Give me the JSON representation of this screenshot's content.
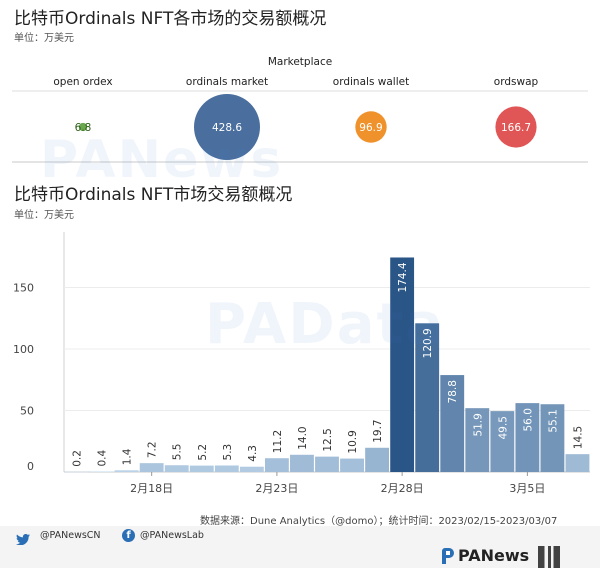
{
  "chart_data": [
    {
      "type": "scatter",
      "title": "比特币Ordinals NFT各市场的交易额概况",
      "subtitle": "单位：万美元",
      "header": "Marketplace",
      "categories": [
        "open ordex",
        "ordinals market",
        "ordinals wallet",
        "ordswap"
      ],
      "values": [
        6.8,
        428.6,
        96.9,
        166.7
      ],
      "labels": [
        "6.8",
        "428.6",
        "96.9",
        "166.7"
      ],
      "colors": [
        "#6aa84f",
        "#4a6f9e",
        "#f0922c",
        "#e05555"
      ]
    },
    {
      "type": "bar",
      "title": "比特币Ordinals NFT市场交易额概况",
      "subtitle": "单位：万美元",
      "categories": [
        "2023-02-15",
        "2023-02-16",
        "2023-02-17",
        "2023-02-18",
        "2023-02-19",
        "2023-02-20",
        "2023-02-21",
        "2023-02-22",
        "2023-02-23",
        "2023-02-24",
        "2023-02-25",
        "2023-02-26",
        "2023-02-27",
        "2023-02-28",
        "2023-03-01",
        "2023-03-02",
        "2023-03-03",
        "2023-03-04",
        "2023-03-05",
        "2023-03-06",
        "2023-03-07"
      ],
      "values": [
        0.2,
        0.4,
        1.4,
        7.2,
        5.5,
        5.2,
        5.3,
        4.3,
        11.2,
        14.0,
        12.5,
        10.9,
        19.7,
        174.4,
        120.9,
        78.8,
        51.9,
        49.5,
        56.0,
        55.1,
        14.5
      ],
      "labels": [
        "0.2",
        "0.4",
        "1.4",
        "7.2",
        "5.5",
        "5.2",
        "5.3",
        "4.3",
        "11.2",
        "14.0",
        "12.5",
        "10.9",
        "19.7",
        "174.4",
        "120.9",
        "78.8",
        "51.9",
        "49.5",
        "56.0",
        "55.1",
        "14.5"
      ],
      "x_ticks": [
        "2月18日",
        "2月23日",
        "2月28日",
        "3月5日"
      ],
      "x_tick_index": [
        3,
        8,
        13,
        18
      ],
      "y_ticks": [
        "0",
        "50",
        "100",
        "150"
      ],
      "y_tick_values": [
        0,
        50,
        100,
        150
      ],
      "ylim": [
        0,
        180
      ],
      "color_max": "#2a5587",
      "color_min": "#c6ddf0",
      "grid": true
    }
  ],
  "source_line": "数据来源：Dune Analytics（@domo）；统计时间：2023/02/15-2023/03/07",
  "footer": {
    "twitter": "@PANewsCN",
    "facebook": "@PANewsLab",
    "brand": "PANews"
  },
  "watermarks": [
    "PANews",
    "PAData"
  ]
}
